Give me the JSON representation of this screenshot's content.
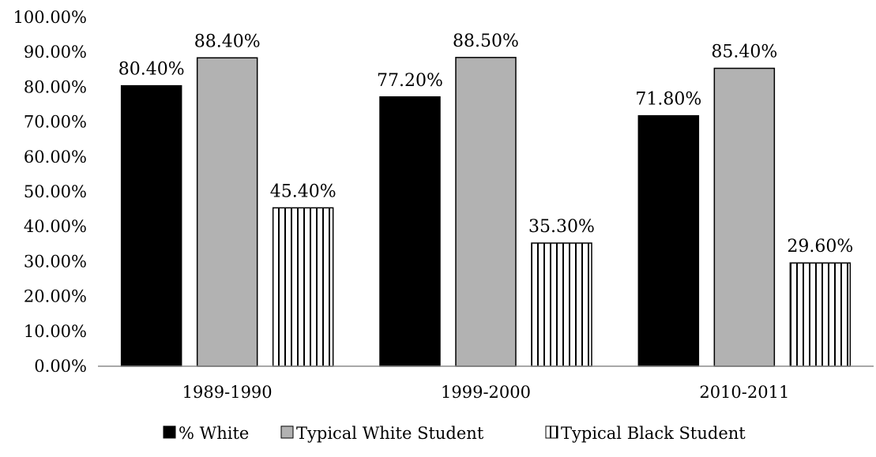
{
  "chart_data": {
    "type": "bar",
    "title": "",
    "xlabel": "",
    "ylabel": "",
    "categories": [
      "1989-1990",
      "1999-2000",
      "2010-2011"
    ],
    "series": [
      {
        "name": "% White",
        "values": [
          80.4,
          77.2,
          71.8
        ],
        "labels": [
          "80.40%",
          "77.20%",
          "71.80%"
        ],
        "fill": "#000000",
        "pattern": "solid"
      },
      {
        "name": "Typical White Student",
        "values": [
          88.4,
          88.5,
          85.4
        ],
        "labels": [
          "88.40%",
          "88.50%",
          "85.40%"
        ],
        "fill": "#b2b2b2",
        "pattern": "solid"
      },
      {
        "name": "Typical Black Student",
        "values": [
          45.4,
          35.3,
          29.6
        ],
        "labels": [
          "45.40%",
          "35.30%",
          "29.60%"
        ],
        "fill": "#ffffff",
        "pattern": "vertical-stripes"
      }
    ],
    "ylim": [
      0,
      100
    ],
    "yticks": [
      0,
      10,
      20,
      30,
      40,
      50,
      60,
      70,
      80,
      90,
      100
    ],
    "ytick_labels": [
      "0.00%",
      "10.00%",
      "20.00%",
      "30.00%",
      "40.00%",
      "50.00%",
      "60.00%",
      "70.00%",
      "80.00%",
      "90.00%",
      "100.00%"
    ],
    "grid": false,
    "legend_position": "bottom"
  }
}
